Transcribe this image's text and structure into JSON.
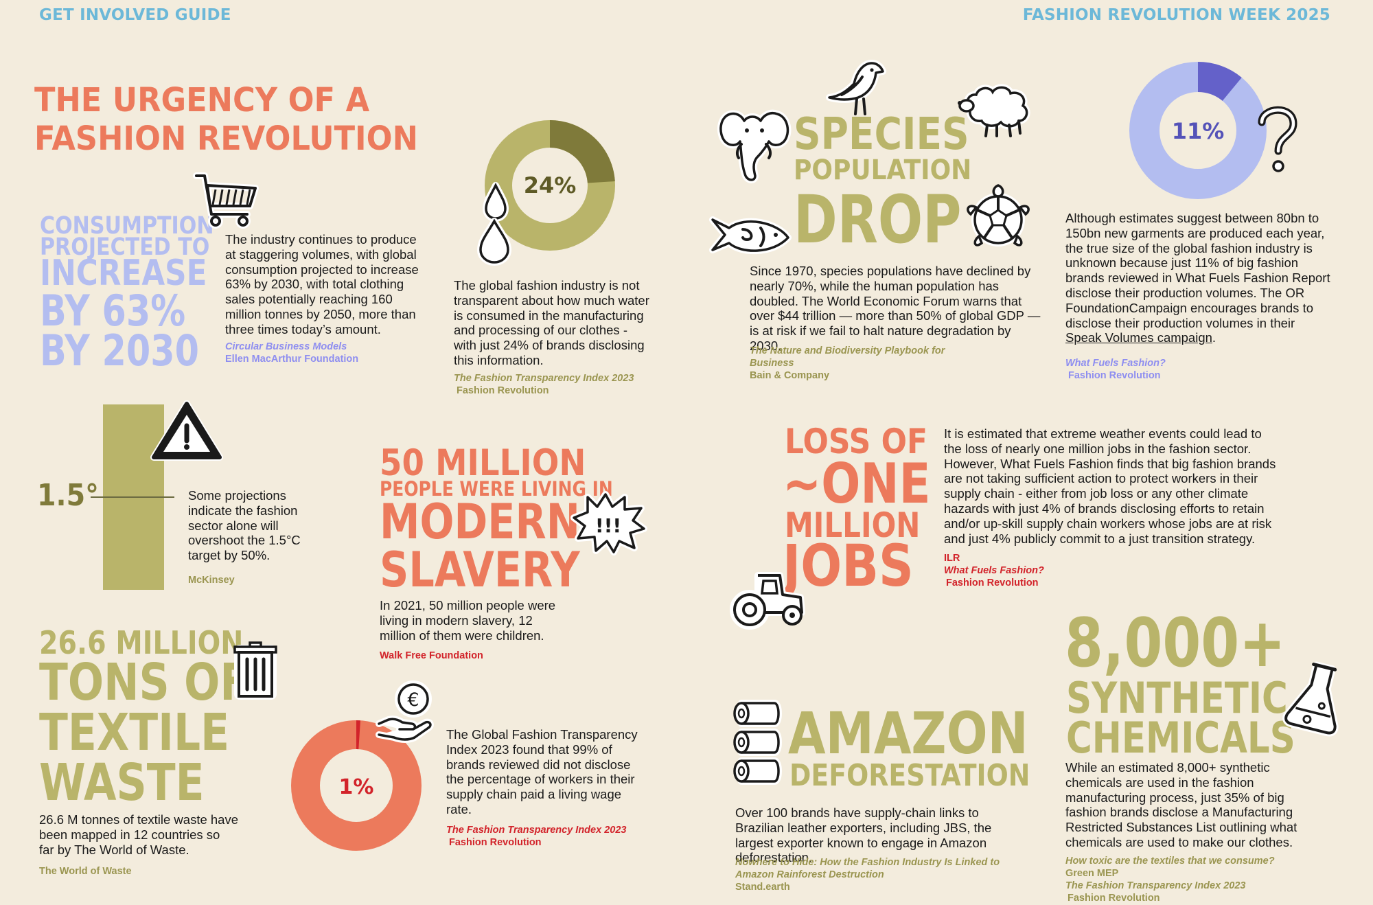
{
  "header": {
    "left": "GET INVOLVED GUIDE",
    "right": "FASHION REVOLUTION WEEK 2025"
  },
  "title": {
    "line1": "THE URGENCY OF A",
    "line2": "FASHION REVOLUTION"
  },
  "consumption": {
    "l1": "CONSUMPTION",
    "l2": "PROJECTED TO",
    "l3": "INCREASE",
    "l4": "BY 63%",
    "l5": "BY 2030",
    "body": "The industry continues to produce at staggering volumes, with global consumption projected to increase 63% by 2030, with total clothing sales potentially reaching 160 million tonnes by 2050, more than three times today’s amount.",
    "src_title": "Circular Business Models",
    "src_org": "Ellen MacArthur Foundation"
  },
  "water": {
    "percent_label": "24%",
    "percent_value": 24,
    "body": "The global fashion industry is not transparent about how much water is consumed in the manufacturing and processing of our clothes - with just 24% of brands disclosing this information.",
    "src_title": "The Fashion Transparency Index 2023",
    "src_org": "Fashion Revolution"
  },
  "species": {
    "l1": "SPECIES",
    "l2": "POPULATION",
    "l3": "DROP",
    "body": "Since 1970, species populations have declined by nearly 70%, while the human population has doubled. The World Economic Forum warns that over $44 trillion — more than 50% of global GDP — is at risk if we fail to halt nature degradation by 2030.",
    "src_title": "The Nature and Biodiversity Playbook for Business",
    "src_org": "Bain & Company"
  },
  "production": {
    "percent_label": "11%",
    "percent_value": 11,
    "body_pre": "Although estimates suggest between 80bn to 150bn new garments are produced each year, the true size of the global fashion industry is unknown because just 11% of big fashion brands reviewed in What Fuels Fashion Report disclose their production volumes. The OR FoundationCampaign encourages brands to disclose their production volumes in their ",
    "body_link": "Speak Volumes campaign",
    "body_post": ".",
    "src_title": "What Fuels Fashion?",
    "src_org": "Fashion Revolution"
  },
  "temperature": {
    "value_label": "1.5°",
    "body": "Some projections indicate the fashion sector alone will overshoot the 1.5°C target by 50%.",
    "src": "McKinsey"
  },
  "slavery": {
    "l1": "50 MILLION",
    "l2": "PEOPLE WERE LIVING IN",
    "l3": "MODERN",
    "l4": "SLAVERY",
    "bubble": "!!!",
    "body": "In 2021, 50 million people were living in modern slavery, 12 million of them were children.",
    "src": "Walk Free Foundation"
  },
  "jobs": {
    "l1": "LOSS OF",
    "l2": "~ONE",
    "l3": "MILLION",
    "l4": "JOBS",
    "body": "It is estimated that extreme weather events could lead to the loss of nearly one million jobs in the fashion sector. However, What Fuels Fashion finds that big fashion brands are not taking sufficient action to protect workers in their supply chain - either from job loss or any other climate hazards with just 4% of brands disclosing efforts to retain and/or up-skill supply chain workers whose jobs are at risk and just 4% publicly commit to a just transition strategy.",
    "src1": "ILR",
    "src_title": "What Fuels Fashion?",
    "src_org": "Fashion Revolution"
  },
  "waste": {
    "l1": "26.6 MILLION",
    "l2": "TONS OF",
    "l3": "TEXTILE",
    "l4": "WASTE",
    "body": "26.6 M tonnes of textile waste have been mapped in 12 countries so far by The World of Waste.",
    "src": "The World of Waste"
  },
  "wage": {
    "percent_label": "1%",
    "percent_value": 1,
    "coin": "€",
    "body": "The Global Fashion Transparency Index 2023 found that 99% of brands reviewed did not disclose the percentage of workers in their supply chain paid a living wage rate.",
    "src_title": "The Fashion Transparency Index 2023",
    "src_org": "Fashion Revolution"
  },
  "amazon": {
    "l1": "AMAZON",
    "l2": "DEFORESTATION",
    "body": "Over 100 brands have supply-chain links to Brazilian leather exporters, including JBS, the largest exporter known to engage in Amazon deforestation.",
    "src_title": "Nowhere to Hide: How the Fashion Industry Is Linked to Amazon Rainforest Destruction",
    "src_org": "Stand.earth"
  },
  "chemicals": {
    "l1": "8,000+",
    "l2": "SYNTHETIC",
    "l3": "CHEMICALS",
    "body": "While an estimated 8,000+ synthetic chemicals are used in the fashion manufacturing process, just 35% of big fashion brands disclose a Manufacturing Restricted Substances List outlining what chemicals are used to make our clothes.",
    "src_title1": "How toxic are the textiles that we consume?",
    "src_org1": "Green MEP",
    "src_title2": "The Fashion Transparency Index 2023",
    "src_org2": "Fashion Revolution"
  },
  "colors": {
    "background": "#f3ecdd",
    "header_blue": "#6cb8d8",
    "salmon": "#ec7a5c",
    "khaki": "#b9b46a",
    "olive_dark": "#7f7a3a",
    "lavender": "#b3bdf0",
    "indigo": "#6461c9",
    "red": "#d2232a"
  }
}
